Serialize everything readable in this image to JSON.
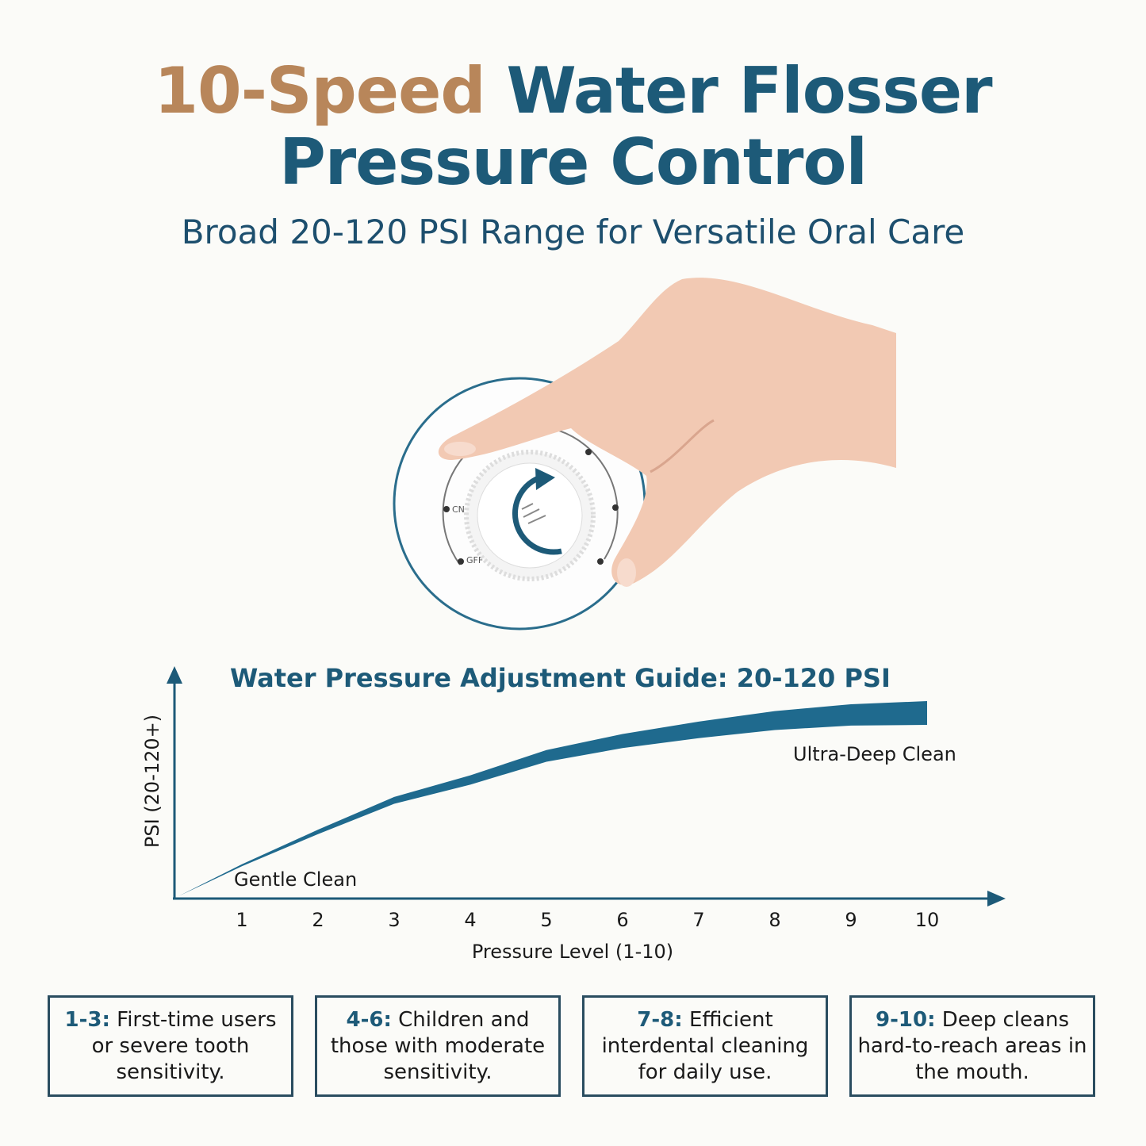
{
  "header": {
    "title_accent": "10-Speed",
    "title_rest": "Water Flosser",
    "title_line2": "Pressure Control",
    "subtitle": "Broad 20-120 PSI Range for Versatile Oral Care"
  },
  "colors": {
    "accent": "#b8865a",
    "primary": "#1d5a78",
    "box_border": "#2a4d60",
    "skin": "#f2c9b3"
  },
  "dial": {
    "labels": [
      "CN",
      "GFF"
    ],
    "icon": "rotate-clockwise-arrow-icon"
  },
  "chart_data": {
    "type": "area",
    "title": "Water Pressure Adjustment Guide: 20-120 PSI",
    "xlabel": "Pressure Level (1-10)",
    "ylabel": "PSI (20-120+)",
    "x": [
      1,
      2,
      3,
      4,
      5,
      6,
      7,
      8,
      9,
      10
    ],
    "x_tick_labels": [
      "1",
      "2",
      "3",
      "4",
      "5",
      "6",
      "7",
      "8",
      "9",
      "10"
    ],
    "y": [
      38,
      56,
      73,
      84,
      97,
      105,
      111,
      116,
      119,
      120
    ],
    "ylim": [
      20,
      120
    ],
    "grid": false,
    "annotations": {
      "low": "Gentle Clean",
      "high": "Ultra-Deep Clean"
    }
  },
  "guide": [
    {
      "range": "1-3:",
      "text": "First-time users or severe tooth sensitivity."
    },
    {
      "range": "4-6:",
      "text": "Children and those with moderate sensitivity."
    },
    {
      "range": "7-8:",
      "text": "Efficient interdental cleaning for daily use."
    },
    {
      "range": "9-10:",
      "text": "Deep cleans hard-to-reach areas in the mouth."
    }
  ]
}
